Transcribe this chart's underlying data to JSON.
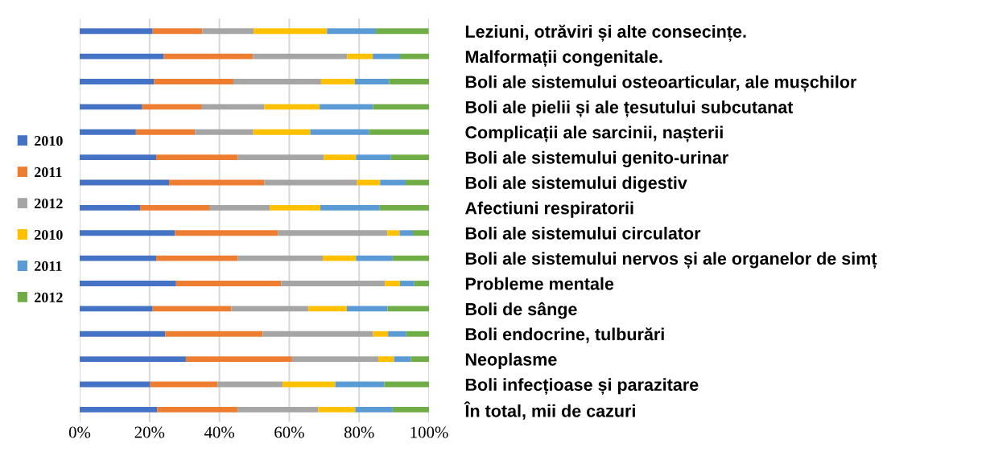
{
  "chart_data": {
    "type": "bar",
    "orientation": "horizontal",
    "stacked": true,
    "categories": [
      "Leziuni, otrăviri și alte consecințe.",
      "Malformații congenitale.",
      "Boli ale sistemului osteoarticular, ale mușchilor",
      "Boli ale pielii și ale țesutului subcutanat",
      "Complicații ale sarcinii, nașterii",
      "Boli ale sistemului genito-urinar",
      "Boli ale sistemului digestiv",
      "Afectiuni respiratorii",
      "Boli ale sistemului circulator",
      "Boli ale sistemului nervos și ale organelor de simț",
      "Probleme mentale",
      "Boli de sânge",
      "Boli endocrine, tulburări",
      "Neoplasme",
      "Boli infecțioase și parazitare",
      "În total, mii de cazuri"
    ],
    "series": [
      {
        "name": "2010",
        "color": "#4472c4",
        "values": [
          20.9,
          24.1,
          21.3,
          17.9,
          16.1,
          21.9,
          25.6,
          17.3,
          27.3,
          21.9,
          27.6,
          20.9,
          24.5,
          30.4,
          20.2,
          22.2
        ]
      },
      {
        "name": "2011",
        "color": "#ed7d31",
        "values": [
          14.2,
          25.5,
          22.7,
          17.1,
          16.9,
          23.4,
          27.3,
          20.0,
          29.5,
          23.4,
          30.1,
          22.5,
          27.9,
          30.4,
          19.3,
          23.0
        ]
      },
      {
        "name": "2012",
        "color": "#a5a5a5",
        "values": [
          14.7,
          27.0,
          25.1,
          17.9,
          16.7,
          24.6,
          26.5,
          17.1,
          31.3,
          24.3,
          29.7,
          22.1,
          31.6,
          24.7,
          18.6,
          23.1
        ]
      },
      {
        "name": "2010",
        "color": "#ffc000",
        "values": [
          21.0,
          7.3,
          9.7,
          15.8,
          16.3,
          9.2,
          6.6,
          14.5,
          3.5,
          9.5,
          4.3,
          11.0,
          4.3,
          4.5,
          15.1,
          10.6
        ]
      },
      {
        "name": "2011",
        "color": "#5b9bd5",
        "values": [
          14.0,
          7.8,
          9.8,
          15.3,
          16.9,
          10.0,
          7.3,
          17.0,
          3.8,
          10.5,
          4.1,
          11.6,
          5.2,
          4.8,
          14.0,
          10.7
        ]
      },
      {
        "name": "2012",
        "color": "#70ad47",
        "values": [
          15.1,
          8.3,
          11.4,
          16.0,
          17.1,
          10.9,
          6.7,
          14.1,
          4.6,
          10.4,
          4.2,
          11.9,
          6.5,
          5.2,
          12.8,
          10.4
        ]
      }
    ],
    "xlim": [
      0,
      100
    ],
    "xticks": [
      {
        "value": 0,
        "label": "0%"
      },
      {
        "value": 20,
        "label": "20%"
      },
      {
        "value": 40,
        "label": "40%"
      },
      {
        "value": 60,
        "label": "60%"
      },
      {
        "value": 80,
        "label": "80%"
      },
      {
        "value": 100,
        "label": "100%"
      }
    ],
    "grid": "x",
    "legend": "left"
  }
}
